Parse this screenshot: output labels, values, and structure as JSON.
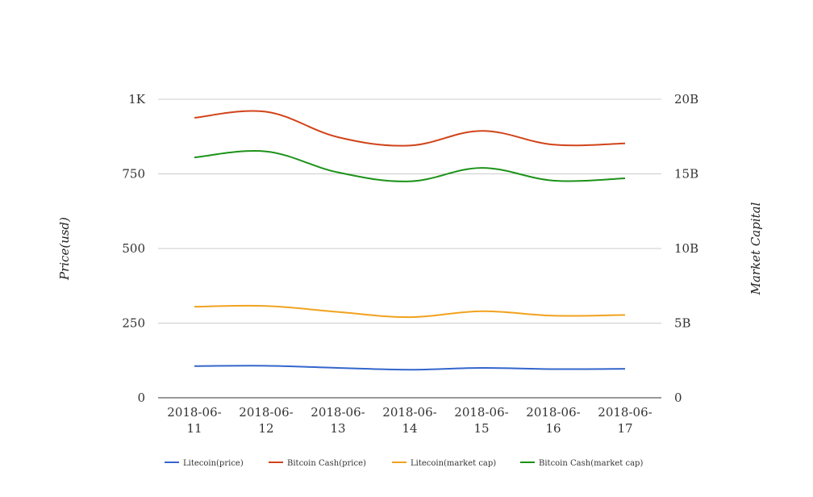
{
  "chart_data": {
    "type": "line",
    "title": "",
    "categories": [
      "2018-06-11",
      "2018-06-12",
      "2018-06-13",
      "2018-06-14",
      "2018-06-15",
      "2018-06-16",
      "2018-06-17"
    ],
    "x_tick_labels": [
      [
        "2018-06-",
        "11"
      ],
      [
        "2018-06-",
        "12"
      ],
      [
        "2018-06-",
        "13"
      ],
      [
        "2018-06-",
        "14"
      ],
      [
        "2018-06-",
        "15"
      ],
      [
        "2018-06-",
        "16"
      ],
      [
        "2018-06-",
        "17"
      ]
    ],
    "ylabel_left": "Price(usd)",
    "ylabel_right": "Market Capital",
    "ylim_left": [
      0,
      1000
    ],
    "ylim_right": [
      0,
      20000000000
    ],
    "yticks_left": [
      {
        "value": 0,
        "label": "0"
      },
      {
        "value": 250,
        "label": "250"
      },
      {
        "value": 500,
        "label": "500"
      },
      {
        "value": 750,
        "label": "750"
      },
      {
        "value": 1000,
        "label": "1K"
      }
    ],
    "yticks_right": [
      {
        "value": 0,
        "label": "0"
      },
      {
        "value": 5000000000,
        "label": "5B"
      },
      {
        "value": 10000000000,
        "label": "10B"
      },
      {
        "value": 15000000000,
        "label": "15B"
      },
      {
        "value": 20000000000,
        "label": "20B"
      }
    ],
    "grid": true,
    "legend_position": "bottom",
    "series": [
      {
        "name": "Litecoin(price)",
        "axis": "left",
        "color": "#3366cc",
        "values": [
          106,
          107,
          100,
          94,
          100,
          96,
          97
        ]
      },
      {
        "name": "Bitcoin Cash(price)",
        "axis": "left",
        "color": "#d1441a",
        "values": [
          938,
          958,
          873,
          845,
          894,
          848,
          852
        ]
      },
      {
        "name": "Litecoin(market cap)",
        "axis": "right",
        "color": "#f1a21e",
        "values": [
          6100000000,
          6150000000,
          5750000000,
          5400000000,
          5800000000,
          5500000000,
          5550000000
        ]
      },
      {
        "name": "Bitcoin Cash(market cap)",
        "axis": "right",
        "color": "#1c9219",
        "values": [
          16100000000,
          16500000000,
          15100000000,
          14500000000,
          15400000000,
          14550000000,
          14700000000
        ]
      }
    ]
  }
}
